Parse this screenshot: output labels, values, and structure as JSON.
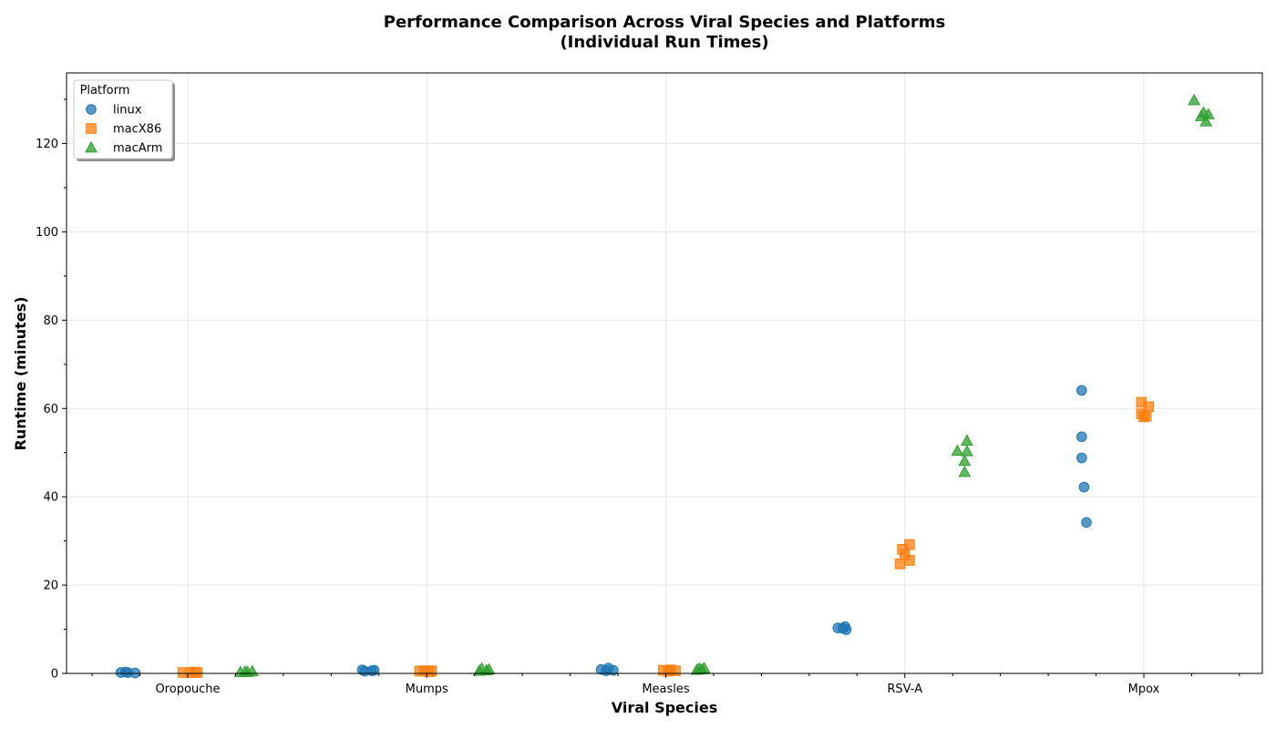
{
  "chart_data": {
    "type": "scatter",
    "title": "Performance Comparison Across Viral Species and Platforms",
    "subtitle": "(Individual Run Times)",
    "xlabel": "Viral Species",
    "ylabel": "Runtime (minutes)",
    "categories": [
      "Oropouche",
      "Mumps",
      "Measles",
      "RSV-A",
      "Mpox"
    ],
    "ylim": [
      0,
      136
    ],
    "yticks": [
      0,
      20,
      40,
      60,
      80,
      100,
      120
    ],
    "grid": true,
    "legend": {
      "title": "Platform",
      "placement": "top-left"
    },
    "series": [
      {
        "name": "linux",
        "marker": "circle",
        "color": "#1f77b4",
        "points": [
          {
            "category": "Oropouche",
            "offset": -0.28,
            "y": 0.2
          },
          {
            "category": "Oropouche",
            "offset": -0.26,
            "y": 0.3
          },
          {
            "category": "Oropouche",
            "offset": -0.25,
            "y": 0.2
          },
          {
            "category": "Oropouche",
            "offset": -0.22,
            "y": 0.1
          },
          {
            "category": "Mumps",
            "offset": -0.27,
            "y": 0.8
          },
          {
            "category": "Mumps",
            "offset": -0.26,
            "y": 0.5
          },
          {
            "category": "Mumps",
            "offset": -0.23,
            "y": 0.6
          },
          {
            "category": "Mumps",
            "offset": -0.22,
            "y": 0.7
          },
          {
            "category": "Measles",
            "offset": -0.27,
            "y": 0.9
          },
          {
            "category": "Measles",
            "offset": -0.25,
            "y": 0.6
          },
          {
            "category": "Measles",
            "offset": -0.24,
            "y": 1.2
          },
          {
            "category": "Measles",
            "offset": -0.22,
            "y": 0.7
          },
          {
            "category": "RSV-A",
            "offset": -0.28,
            "y": 10.3
          },
          {
            "category": "RSV-A",
            "offset": -0.26,
            "y": 10.2
          },
          {
            "category": "RSV-A",
            "offset": -0.25,
            "y": 10.6
          },
          {
            "category": "RSV-A",
            "offset": -0.245,
            "y": 9.9
          },
          {
            "category": "Mpox",
            "offset": -0.26,
            "y": 64.1
          },
          {
            "category": "Mpox",
            "offset": -0.26,
            "y": 53.6
          },
          {
            "category": "Mpox",
            "offset": -0.26,
            "y": 48.8
          },
          {
            "category": "Mpox",
            "offset": -0.25,
            "y": 42.2
          },
          {
            "category": "Mpox",
            "offset": -0.24,
            "y": 34.2
          }
        ]
      },
      {
        "name": "macX86",
        "marker": "square",
        "color": "#ff7f0e",
        "points": [
          {
            "category": "Oropouche",
            "offset": -0.02,
            "y": 0.2
          },
          {
            "category": "Oropouche",
            "offset": 0.01,
            "y": 0.2
          },
          {
            "category": "Oropouche",
            "offset": 0.03,
            "y": 0.3
          },
          {
            "category": "Oropouche",
            "offset": 0.04,
            "y": 0.2
          },
          {
            "category": "Mumps",
            "offset": -0.03,
            "y": 0.5
          },
          {
            "category": "Mumps",
            "offset": -0.01,
            "y": 0.6
          },
          {
            "category": "Mumps",
            "offset": 0.01,
            "y": 0.4
          },
          {
            "category": "Mumps",
            "offset": 0.02,
            "y": 0.6
          },
          {
            "category": "Measles",
            "offset": -0.01,
            "y": 0.7
          },
          {
            "category": "Measles",
            "offset": 0.01,
            "y": 0.5
          },
          {
            "category": "Measles",
            "offset": 0.02,
            "y": 0.8
          },
          {
            "category": "Measles",
            "offset": 0.04,
            "y": 0.6
          },
          {
            "category": "RSV-A",
            "offset": -0.02,
            "y": 24.8
          },
          {
            "category": "RSV-A",
            "offset": -0.01,
            "y": 28.1
          },
          {
            "category": "RSV-A",
            "offset": 0.0,
            "y": 26.9
          },
          {
            "category": "RSV-A",
            "offset": 0.02,
            "y": 25.6
          },
          {
            "category": "RSV-A",
            "offset": 0.02,
            "y": 29.2
          },
          {
            "category": "Mpox",
            "offset": -0.01,
            "y": 61.4
          },
          {
            "category": "Mpox",
            "offset": -0.01,
            "y": 58.8
          },
          {
            "category": "Mpox",
            "offset": 0.0,
            "y": 58.1
          },
          {
            "category": "Mpox",
            "offset": 0.01,
            "y": 58.3
          },
          {
            "category": "Mpox",
            "offset": 0.02,
            "y": 60.4
          }
        ]
      },
      {
        "name": "macArm",
        "marker": "triangle",
        "color": "#2ca02c",
        "points": [
          {
            "category": "Oropouche",
            "offset": 0.22,
            "y": 0.3
          },
          {
            "category": "Oropouche",
            "offset": 0.24,
            "y": 0.4
          },
          {
            "category": "Oropouche",
            "offset": 0.25,
            "y": 0.3
          },
          {
            "category": "Oropouche",
            "offset": 0.27,
            "y": 0.5
          },
          {
            "category": "Mumps",
            "offset": 0.22,
            "y": 0.6
          },
          {
            "category": "Mumps",
            "offset": 0.23,
            "y": 1.1
          },
          {
            "category": "Mumps",
            "offset": 0.25,
            "y": 0.7
          },
          {
            "category": "Mumps",
            "offset": 0.26,
            "y": 0.9
          },
          {
            "category": "Measles",
            "offset": 0.13,
            "y": 0.8
          },
          {
            "category": "Measles",
            "offset": 0.14,
            "y": 1.1
          },
          {
            "category": "Measles",
            "offset": 0.15,
            "y": 0.9
          },
          {
            "category": "Measles",
            "offset": 0.16,
            "y": 1.2
          },
          {
            "category": "RSV-A",
            "offset": 0.22,
            "y": 50.4
          },
          {
            "category": "RSV-A",
            "offset": 0.25,
            "y": 45.6
          },
          {
            "category": "RSV-A",
            "offset": 0.25,
            "y": 48.1
          },
          {
            "category": "RSV-A",
            "offset": 0.26,
            "y": 50.3
          },
          {
            "category": "RSV-A",
            "offset": 0.26,
            "y": 52.7
          },
          {
            "category": "Mpox",
            "offset": 0.21,
            "y": 129.8
          },
          {
            "category": "Mpox",
            "offset": 0.24,
            "y": 126.2
          },
          {
            "category": "Mpox",
            "offset": 0.25,
            "y": 127.0
          },
          {
            "category": "Mpox",
            "offset": 0.26,
            "y": 125.0
          },
          {
            "category": "Mpox",
            "offset": 0.27,
            "y": 126.6
          }
        ]
      }
    ]
  }
}
